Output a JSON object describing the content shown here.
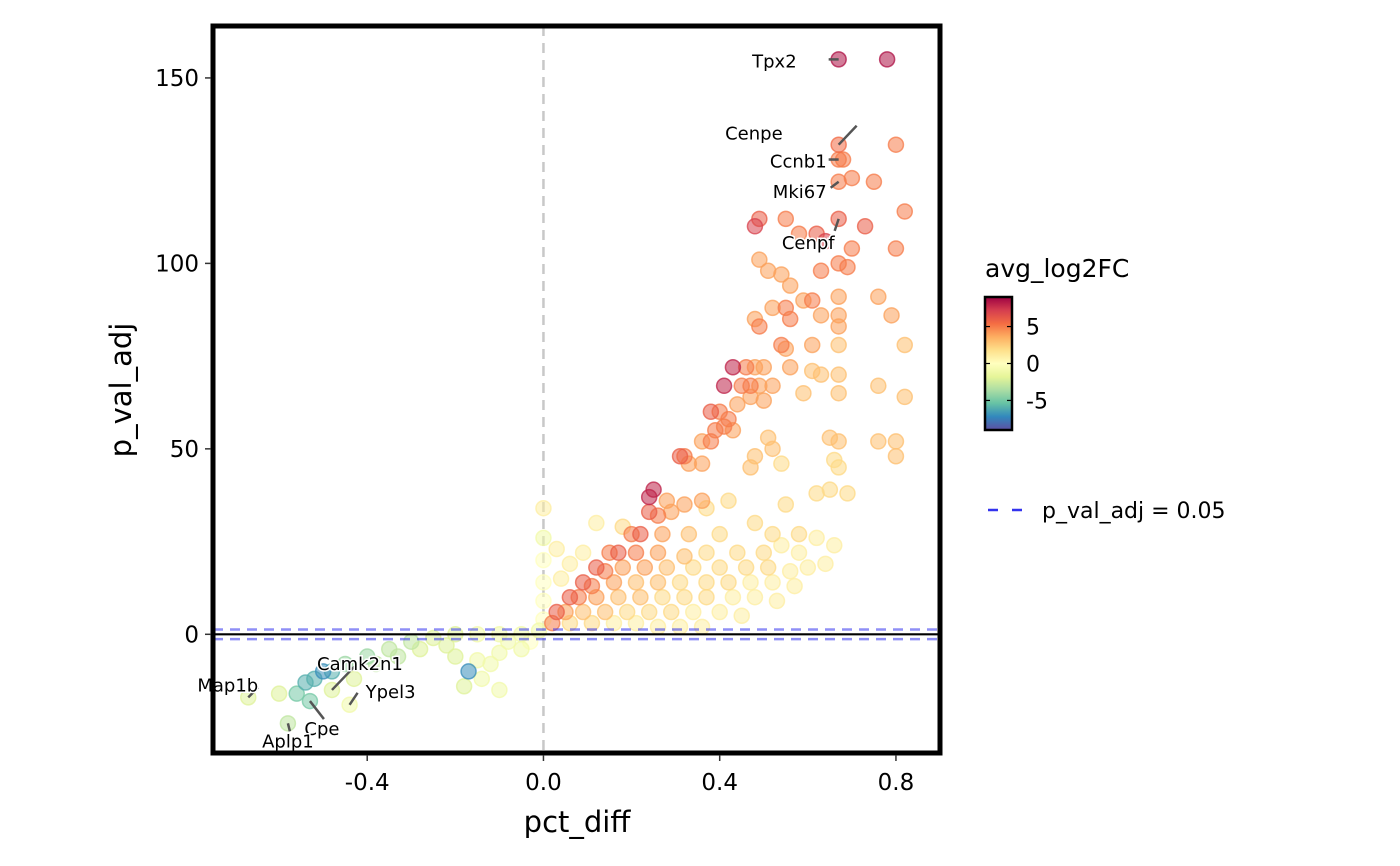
{
  "chart_data": {
    "type": "scatter",
    "title": "",
    "xlabel": "pct_diff",
    "ylabel": "p_val_adj",
    "xlim": [
      -0.75,
      0.9
    ],
    "ylim": [
      -32,
      164
    ],
    "x_ticks": [
      {
        "value": -0.4,
        "label": "-0.4"
      },
      {
        "value": 0.0,
        "label": "0.0"
      },
      {
        "value": 0.4,
        "label": "0.4"
      },
      {
        "value": 0.8,
        "label": "0.8"
      }
    ],
    "y_ticks": [
      {
        "value": 0,
        "label": "0"
      },
      {
        "value": 50,
        "label": "50"
      },
      {
        "value": 100,
        "label": "100"
      },
      {
        "value": 150,
        "label": "150"
      }
    ],
    "grid": false,
    "reference_lines": {
      "vertical_dashed_x": 0.0,
      "horizontal_solid_y": 0,
      "threshold_dashed_y": [
        1.3,
        -1.3
      ],
      "threshold_label": "p_val_adj = 0.05",
      "threshold_color": "#3333ee"
    },
    "color_scale": {
      "title": "avg_log2FC",
      "palette": "Spectral (reversed)",
      "range": [
        -9,
        9
      ],
      "ticks": [
        {
          "value": 5,
          "label": "5"
        },
        {
          "value": 0,
          "label": "0"
        },
        {
          "value": -5,
          "label": "-5"
        }
      ],
      "stops": [
        "#5e4fa2",
        "#3288bd",
        "#66c2a5",
        "#abdda4",
        "#e6f598",
        "#ffffbf",
        "#fee08b",
        "#fdae61",
        "#f46d43",
        "#d53e4f",
        "#9e0142"
      ]
    },
    "legend": {
      "placement": "right",
      "line_label": "p_val_adj = 0.05"
    },
    "labeled_points": [
      {
        "gene": "Tpx2",
        "x": 0.67,
        "y": 155,
        "fc": 8.5
      },
      {
        "gene": "Cenpe",
        "x": 0.67,
        "y": 132,
        "fc": 5.5
      },
      {
        "gene": "Ccnb1",
        "x": 0.67,
        "y": 128,
        "fc": 5.0
      },
      {
        "gene": "Mki67",
        "x": 0.67,
        "y": 122,
        "fc": 5.0
      },
      {
        "gene": "Cenpf",
        "x": 0.67,
        "y": 112,
        "fc": 6.0
      },
      {
        "gene": "Map1b",
        "x": -0.67,
        "y": -17,
        "fc": -2
      },
      {
        "gene": "Camk2n1",
        "x": -0.48,
        "y": -15,
        "fc": -2
      },
      {
        "gene": "Ypel3",
        "x": -0.44,
        "y": -19,
        "fc": -1
      },
      {
        "gene": "Cpe",
        "x": -0.53,
        "y": -18,
        "fc": -5
      },
      {
        "gene": "Aplp1",
        "x": -0.58,
        "y": -24,
        "fc": -3
      }
    ],
    "points": [
      {
        "x": 0.78,
        "y": 155,
        "fc": 8.5
      },
      {
        "x": 0.8,
        "y": 132,
        "fc": 5
      },
      {
        "x": 0.68,
        "y": 128,
        "fc": 5
      },
      {
        "x": 0.75,
        "y": 122,
        "fc": 5
      },
      {
        "x": 0.7,
        "y": 123,
        "fc": 5
      },
      {
        "x": 0.82,
        "y": 114,
        "fc": 5
      },
      {
        "x": 0.73,
        "y": 110,
        "fc": 6
      },
      {
        "x": 0.49,
        "y": 112,
        "fc": 6
      },
      {
        "x": 0.55,
        "y": 112,
        "fc": 5
      },
      {
        "x": 0.48,
        "y": 110,
        "fc": 7
      },
      {
        "x": 0.58,
        "y": 108,
        "fc": 5
      },
      {
        "x": 0.62,
        "y": 108,
        "fc": 6
      },
      {
        "x": 0.64,
        "y": 106,
        "fc": 7
      },
      {
        "x": 0.7,
        "y": 104,
        "fc": 5
      },
      {
        "x": 0.8,
        "y": 104,
        "fc": 5
      },
      {
        "x": 0.49,
        "y": 101,
        "fc": 4
      },
      {
        "x": 0.51,
        "y": 98,
        "fc": 4
      },
      {
        "x": 0.54,
        "y": 97,
        "fc": 4
      },
      {
        "x": 0.63,
        "y": 98,
        "fc": 5
      },
      {
        "x": 0.67,
        "y": 100,
        "fc": 5
      },
      {
        "x": 0.69,
        "y": 99,
        "fc": 5
      },
      {
        "x": 0.56,
        "y": 94,
        "fc": 4
      },
      {
        "x": 0.59,
        "y": 90,
        "fc": 4
      },
      {
        "x": 0.61,
        "y": 90,
        "fc": 5
      },
      {
        "x": 0.67,
        "y": 91,
        "fc": 4
      },
      {
        "x": 0.76,
        "y": 91,
        "fc": 4
      },
      {
        "x": 0.52,
        "y": 88,
        "fc": 4
      },
      {
        "x": 0.55,
        "y": 88,
        "fc": 5
      },
      {
        "x": 0.63,
        "y": 86,
        "fc": 4
      },
      {
        "x": 0.67,
        "y": 86,
        "fc": 4
      },
      {
        "x": 0.79,
        "y": 86,
        "fc": 4
      },
      {
        "x": 0.48,
        "y": 85,
        "fc": 4
      },
      {
        "x": 0.56,
        "y": 85,
        "fc": 5
      },
      {
        "x": 0.49,
        "y": 83,
        "fc": 5
      },
      {
        "x": 0.67,
        "y": 83,
        "fc": 4
      },
      {
        "x": 0.54,
        "y": 78,
        "fc": 5
      },
      {
        "x": 0.55,
        "y": 77,
        "fc": 4
      },
      {
        "x": 0.61,
        "y": 78,
        "fc": 4
      },
      {
        "x": 0.67,
        "y": 78,
        "fc": 3
      },
      {
        "x": 0.82,
        "y": 78,
        "fc": 3
      },
      {
        "x": 0.43,
        "y": 72,
        "fc": 8
      },
      {
        "x": 0.46,
        "y": 72,
        "fc": 5
      },
      {
        "x": 0.48,
        "y": 72,
        "fc": 4
      },
      {
        "x": 0.5,
        "y": 72,
        "fc": 4
      },
      {
        "x": 0.56,
        "y": 72,
        "fc": 4
      },
      {
        "x": 0.61,
        "y": 71,
        "fc": 3
      },
      {
        "x": 0.63,
        "y": 70,
        "fc": 3
      },
      {
        "x": 0.67,
        "y": 70,
        "fc": 3
      },
      {
        "x": 0.41,
        "y": 67,
        "fc": 8
      },
      {
        "x": 0.45,
        "y": 67,
        "fc": 5
      },
      {
        "x": 0.47,
        "y": 67,
        "fc": 5
      },
      {
        "x": 0.49,
        "y": 67,
        "fc": 4
      },
      {
        "x": 0.52,
        "y": 67,
        "fc": 4
      },
      {
        "x": 0.59,
        "y": 65,
        "fc": 3
      },
      {
        "x": 0.67,
        "y": 65,
        "fc": 3
      },
      {
        "x": 0.76,
        "y": 67,
        "fc": 3
      },
      {
        "x": 0.82,
        "y": 64,
        "fc": 3
      },
      {
        "x": 0.47,
        "y": 64,
        "fc": 4
      },
      {
        "x": 0.5,
        "y": 63,
        "fc": 4
      },
      {
        "x": 0.44,
        "y": 62,
        "fc": 4
      },
      {
        "x": 0.38,
        "y": 60,
        "fc": 6
      },
      {
        "x": 0.4,
        "y": 60,
        "fc": 5
      },
      {
        "x": 0.42,
        "y": 58,
        "fc": 5
      },
      {
        "x": 0.39,
        "y": 55,
        "fc": 5
      },
      {
        "x": 0.41,
        "y": 56,
        "fc": 5
      },
      {
        "x": 0.43,
        "y": 55,
        "fc": 4
      },
      {
        "x": 0.36,
        "y": 52,
        "fc": 4
      },
      {
        "x": 0.38,
        "y": 52,
        "fc": 5
      },
      {
        "x": 0.51,
        "y": 53,
        "fc": 3
      },
      {
        "x": 0.52,
        "y": 50,
        "fc": 3
      },
      {
        "x": 0.65,
        "y": 53,
        "fc": 3
      },
      {
        "x": 0.67,
        "y": 52,
        "fc": 3
      },
      {
        "x": 0.76,
        "y": 52,
        "fc": 3
      },
      {
        "x": 0.8,
        "y": 52,
        "fc": 3
      },
      {
        "x": 0.8,
        "y": 48,
        "fc": 3
      },
      {
        "x": 0.31,
        "y": 48,
        "fc": 6
      },
      {
        "x": 0.32,
        "y": 48,
        "fc": 5
      },
      {
        "x": 0.33,
        "y": 46,
        "fc": 4
      },
      {
        "x": 0.36,
        "y": 46,
        "fc": 4
      },
      {
        "x": 0.47,
        "y": 45,
        "fc": 3
      },
      {
        "x": 0.48,
        "y": 48,
        "fc": 3
      },
      {
        "x": 0.54,
        "y": 46,
        "fc": 2
      },
      {
        "x": 0.66,
        "y": 47,
        "fc": 2
      },
      {
        "x": 0.67,
        "y": 45,
        "fc": 2
      },
      {
        "x": 0.25,
        "y": 39,
        "fc": 8
      },
      {
        "x": 0.24,
        "y": 37,
        "fc": 8
      },
      {
        "x": 0.28,
        "y": 36,
        "fc": 4
      },
      {
        "x": 0.32,
        "y": 35,
        "fc": 4
      },
      {
        "x": 0.36,
        "y": 36,
        "fc": 4
      },
      {
        "x": 0.42,
        "y": 36,
        "fc": 2
      },
      {
        "x": 0.0,
        "y": 34,
        "fc": 1
      },
      {
        "x": 0.24,
        "y": 33,
        "fc": 6
      },
      {
        "x": 0.26,
        "y": 32,
        "fc": 5
      },
      {
        "x": 0.29,
        "y": 33,
        "fc": 4
      },
      {
        "x": 0.37,
        "y": 34,
        "fc": 2
      },
      {
        "x": 0.48,
        "y": 30,
        "fc": 2
      },
      {
        "x": 0.55,
        "y": 35,
        "fc": 2
      },
      {
        "x": 0.62,
        "y": 38,
        "fc": 2
      },
      {
        "x": 0.65,
        "y": 39,
        "fc": 2
      },
      {
        "x": 0.69,
        "y": 38,
        "fc": 2
      },
      {
        "x": 0.12,
        "y": 30,
        "fc": 1
      },
      {
        "x": 0.18,
        "y": 29,
        "fc": 2
      },
      {
        "x": 0.2,
        "y": 27,
        "fc": 5
      },
      {
        "x": 0.22,
        "y": 27,
        "fc": 6
      },
      {
        "x": 0.27,
        "y": 27,
        "fc": 4
      },
      {
        "x": 0.33,
        "y": 27,
        "fc": 3
      },
      {
        "x": 0.4,
        "y": 27,
        "fc": 2
      },
      {
        "x": 0.52,
        "y": 27,
        "fc": 2
      },
      {
        "x": 0.58,
        "y": 27,
        "fc": 2
      },
      {
        "x": 0.62,
        "y": 26,
        "fc": 1
      },
      {
        "x": 0.66,
        "y": 24,
        "fc": 1
      },
      {
        "x": 0.03,
        "y": 23,
        "fc": 1
      },
      {
        "x": 0.09,
        "y": 22,
        "fc": 1
      },
      {
        "x": 0.15,
        "y": 22,
        "fc": 5
      },
      {
        "x": 0.17,
        "y": 22,
        "fc": 6
      },
      {
        "x": 0.21,
        "y": 22,
        "fc": 5
      },
      {
        "x": 0.26,
        "y": 22,
        "fc": 4
      },
      {
        "x": 0.32,
        "y": 21,
        "fc": 3
      },
      {
        "x": 0.37,
        "y": 22,
        "fc": 2
      },
      {
        "x": 0.44,
        "y": 22,
        "fc": 2
      },
      {
        "x": 0.5,
        "y": 22,
        "fc": 2
      },
      {
        "x": 0.54,
        "y": 24,
        "fc": 1
      },
      {
        "x": 0.58,
        "y": 22,
        "fc": 1
      },
      {
        "x": 0.06,
        "y": 19,
        "fc": 1
      },
      {
        "x": 0.12,
        "y": 18,
        "fc": 6
      },
      {
        "x": 0.14,
        "y": 17,
        "fc": 5
      },
      {
        "x": 0.18,
        "y": 18,
        "fc": 4
      },
      {
        "x": 0.23,
        "y": 18,
        "fc": 4
      },
      {
        "x": 0.28,
        "y": 18,
        "fc": 3
      },
      {
        "x": 0.34,
        "y": 18,
        "fc": 2
      },
      {
        "x": 0.4,
        "y": 18,
        "fc": 2
      },
      {
        "x": 0.46,
        "y": 18,
        "fc": 2
      },
      {
        "x": 0.51,
        "y": 18,
        "fc": 2
      },
      {
        "x": 0.56,
        "y": 17,
        "fc": 1
      },
      {
        "x": 0.6,
        "y": 18,
        "fc": 1
      },
      {
        "x": 0.64,
        "y": 19,
        "fc": 1
      },
      {
        "x": 0.04,
        "y": 15,
        "fc": 1
      },
      {
        "x": 0.09,
        "y": 14,
        "fc": 6
      },
      {
        "x": 0.11,
        "y": 13,
        "fc": 5
      },
      {
        "x": 0.16,
        "y": 14,
        "fc": 4
      },
      {
        "x": 0.21,
        "y": 14,
        "fc": 3
      },
      {
        "x": 0.26,
        "y": 14,
        "fc": 3
      },
      {
        "x": 0.31,
        "y": 14,
        "fc": 2
      },
      {
        "x": 0.37,
        "y": 14,
        "fc": 2
      },
      {
        "x": 0.42,
        "y": 14,
        "fc": 2
      },
      {
        "x": 0.47,
        "y": 14,
        "fc": 1
      },
      {
        "x": 0.52,
        "y": 14,
        "fc": 1
      },
      {
        "x": 0.57,
        "y": 13,
        "fc": 1
      },
      {
        "x": 0.06,
        "y": 10,
        "fc": 6
      },
      {
        "x": 0.08,
        "y": 10,
        "fc": 5
      },
      {
        "x": 0.12,
        "y": 10,
        "fc": 4
      },
      {
        "x": 0.17,
        "y": 10,
        "fc": 3
      },
      {
        "x": 0.22,
        "y": 10,
        "fc": 3
      },
      {
        "x": 0.27,
        "y": 10,
        "fc": 2
      },
      {
        "x": 0.32,
        "y": 10,
        "fc": 2
      },
      {
        "x": 0.37,
        "y": 10,
        "fc": 2
      },
      {
        "x": 0.43,
        "y": 10,
        "fc": 1
      },
      {
        "x": 0.48,
        "y": 10,
        "fc": 1
      },
      {
        "x": 0.53,
        "y": 9,
        "fc": 1
      },
      {
        "x": 0.03,
        "y": 6,
        "fc": 6
      },
      {
        "x": 0.05,
        "y": 6,
        "fc": 4
      },
      {
        "x": 0.09,
        "y": 6,
        "fc": 3
      },
      {
        "x": 0.14,
        "y": 6,
        "fc": 3
      },
      {
        "x": 0.19,
        "y": 6,
        "fc": 2
      },
      {
        "x": 0.24,
        "y": 6,
        "fc": 2
      },
      {
        "x": 0.29,
        "y": 6,
        "fc": 2
      },
      {
        "x": 0.34,
        "y": 6,
        "fc": 1
      },
      {
        "x": 0.4,
        "y": 6,
        "fc": 1
      },
      {
        "x": 0.45,
        "y": 5,
        "fc": 1
      },
      {
        "x": 0.02,
        "y": 3,
        "fc": 5
      },
      {
        "x": 0.06,
        "y": 3,
        "fc": 2
      },
      {
        "x": 0.11,
        "y": 3,
        "fc": 2
      },
      {
        "x": 0.16,
        "y": 3,
        "fc": 1
      },
      {
        "x": 0.21,
        "y": 3,
        "fc": 1
      },
      {
        "x": 0.26,
        "y": 2,
        "fc": 1
      },
      {
        "x": 0.31,
        "y": 2,
        "fc": 1
      },
      {
        "x": 0.36,
        "y": 2,
        "fc": 1
      },
      {
        "x": 0.0,
        "y": 26,
        "fc": -1
      },
      {
        "x": 0.0,
        "y": 20,
        "fc": 0
      },
      {
        "x": 0.0,
        "y": 14,
        "fc": 0
      },
      {
        "x": 0.0,
        "y": 9,
        "fc": 0
      },
      {
        "x": 0.0,
        "y": 4,
        "fc": 0
      },
      {
        "x": -0.01,
        "y": 1,
        "fc": -1
      },
      {
        "x": -0.05,
        "y": 0,
        "fc": -1
      },
      {
        "x": -0.1,
        "y": 0,
        "fc": -1
      },
      {
        "x": -0.15,
        "y": 0,
        "fc": -1
      },
      {
        "x": -0.2,
        "y": 0,
        "fc": -2
      },
      {
        "x": -0.25,
        "y": -1,
        "fc": -2
      },
      {
        "x": -0.3,
        "y": -2,
        "fc": -3
      },
      {
        "x": -0.35,
        "y": -4,
        "fc": -3
      },
      {
        "x": -0.4,
        "y": -6,
        "fc": -4
      },
      {
        "x": -0.45,
        "y": -8,
        "fc": -4
      },
      {
        "x": -0.48,
        "y": -10,
        "fc": -6
      },
      {
        "x": -0.5,
        "y": -10,
        "fc": -7
      },
      {
        "x": -0.52,
        "y": -12,
        "fc": -6
      },
      {
        "x": -0.54,
        "y": -13,
        "fc": -6
      },
      {
        "x": -0.56,
        "y": -16,
        "fc": -5
      },
      {
        "x": -0.6,
        "y": -16,
        "fc": -2
      },
      {
        "x": -0.05,
        "y": -4,
        "fc": -1
      },
      {
        "x": -0.1,
        "y": -5,
        "fc": -1
      },
      {
        "x": -0.12,
        "y": -8,
        "fc": -1
      },
      {
        "x": -0.15,
        "y": -7,
        "fc": -1
      },
      {
        "x": -0.17,
        "y": -10,
        "fc": -7
      },
      {
        "x": -0.2,
        "y": -6,
        "fc": -2
      },
      {
        "x": -0.18,
        "y": -14,
        "fc": -2
      },
      {
        "x": -0.14,
        "y": -12,
        "fc": -1
      },
      {
        "x": -0.1,
        "y": -15,
        "fc": -1
      },
      {
        "x": -0.22,
        "y": -3,
        "fc": -2
      },
      {
        "x": -0.28,
        "y": -4,
        "fc": -2
      },
      {
        "x": -0.33,
        "y": -6,
        "fc": -3
      },
      {
        "x": -0.38,
        "y": -8,
        "fc": -3
      },
      {
        "x": -0.43,
        "y": -12,
        "fc": -2
      },
      {
        "x": -0.03,
        "y": -2,
        "fc": 0
      },
      {
        "x": -0.08,
        "y": -2,
        "fc": -1
      }
    ]
  }
}
